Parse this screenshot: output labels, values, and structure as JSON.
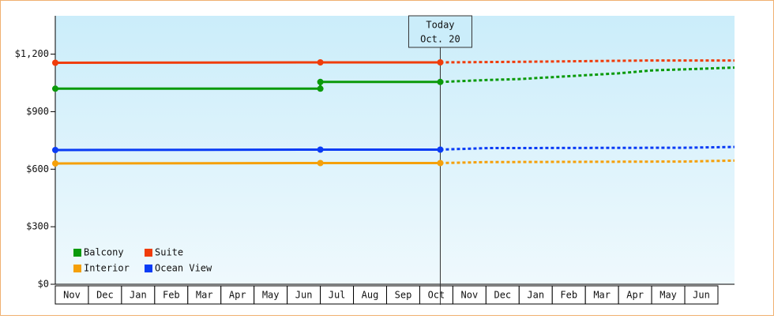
{
  "chart_data": {
    "type": "line",
    "categories": [
      "Nov",
      "Dec",
      "Jan",
      "Feb",
      "Mar",
      "Apr",
      "May",
      "Jun",
      "Jul",
      "Aug",
      "Sep",
      "Oct",
      "Nov",
      "Dec",
      "Jan",
      "Feb",
      "Mar",
      "Apr",
      "May",
      "Jun"
    ],
    "xlim": [
      0,
      20.5
    ],
    "ylim": [
      0,
      1400
    ],
    "yticks": [
      {
        "value": 0,
        "label": "$0"
      },
      {
        "value": 300,
        "label": "$300"
      },
      {
        "value": 600,
        "label": "$600"
      },
      {
        "value": 900,
        "label": "$900"
      },
      {
        "value": 1200,
        "label": "$1,200"
      }
    ],
    "today": {
      "x": 11.62,
      "label": "Today",
      "date": "Oct. 20"
    },
    "series": [
      {
        "name": "Balcony",
        "color": "#0a9a0a",
        "x": [
          0,
          8,
          8,
          11.62
        ],
        "values": [
          1020,
          1020,
          1055,
          1055
        ],
        "forecast": {
          "x": [
            11.62,
            13,
            14,
            17,
            18,
            20.5
          ],
          "values": [
            1055,
            1065,
            1070,
            1100,
            1115,
            1130
          ]
        }
      },
      {
        "name": "Suite",
        "color": "#f03c0a",
        "x": [
          0,
          8,
          11.62
        ],
        "values": [
          1155,
          1157,
          1157
        ],
        "forecast": {
          "x": [
            11.62,
            14,
            18,
            20.5
          ],
          "values": [
            1157,
            1160,
            1167,
            1167
          ]
        }
      },
      {
        "name": "Interior",
        "color": "#f5a00a",
        "x": [
          0,
          8,
          11.62
        ],
        "values": [
          630,
          632,
          632
        ],
        "forecast": {
          "x": [
            11.62,
            13,
            19,
            20.5
          ],
          "values": [
            632,
            637,
            640,
            645
          ]
        }
      },
      {
        "name": "Ocean View",
        "color": "#0a3cf5",
        "x": [
          0,
          8,
          11.62
        ],
        "values": [
          700,
          702,
          702
        ],
        "forecast": {
          "x": [
            11.62,
            13,
            19,
            20.5
          ],
          "values": [
            702,
            710,
            712,
            716
          ]
        }
      }
    ]
  }
}
